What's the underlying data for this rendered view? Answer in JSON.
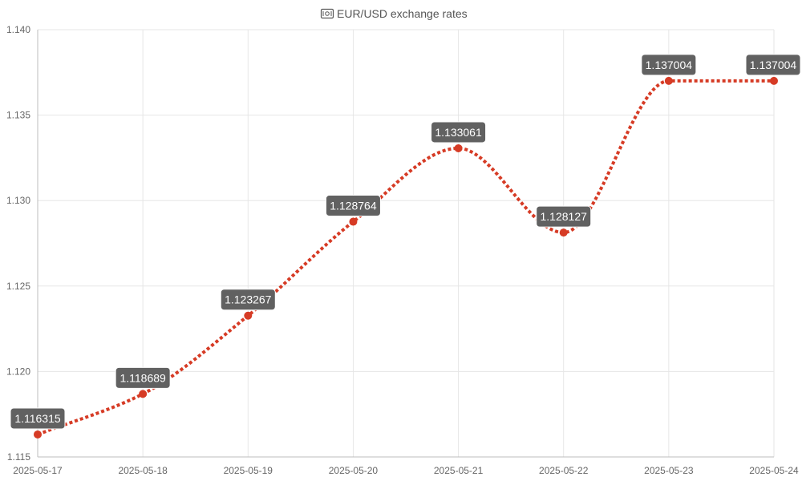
{
  "chart_data": {
    "type": "line",
    "title": "EUR/USD exchange rates",
    "title_icon": "banknote-icon",
    "categories": [
      "2025-05-17",
      "2025-05-18",
      "2025-05-19",
      "2025-05-20",
      "2025-05-21",
      "2025-05-22",
      "2025-05-23",
      "2025-05-24"
    ],
    "series": [
      {
        "values": [
          1.116315,
          1.118689,
          1.123267,
          1.128764,
          1.133061,
          1.128127,
          1.137004,
          1.137004
        ],
        "data_labels": [
          "1.116315",
          "1.118689",
          "1.123267",
          "1.128764",
          "1.133061",
          "1.128127",
          "1.137004",
          "1.137004"
        ],
        "color": "#d63b25",
        "line_style": "dotted",
        "smooth": true
      }
    ],
    "ylim": [
      1.115,
      1.14
    ],
    "yticks": [
      "1.115",
      "1.120",
      "1.125",
      "1.130",
      "1.135",
      "1.140"
    ],
    "grid": true,
    "xlabel": "",
    "ylabel": "",
    "label_background": "#616161"
  }
}
